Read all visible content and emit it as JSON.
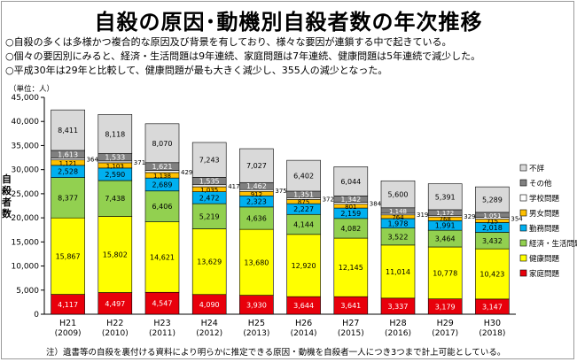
{
  "title": "自殺の原因･動機別自殺者数の年次推移",
  "bullets": [
    "○自殺の多くは多様かつ複合的な原因及び背景を有しており、様々な要因が連鎖する中で起きている。",
    "○個々の要因別にみると、経済・生活問題は9年連続、家庭問題は7年連続、健康問題は5年連続で減少した。",
    "○平成30年は29年と比較して、健康問題が最も大きく減少し、355人の減少となった。"
  ],
  "footnote": "注）遺書等の自殺を裏付ける資料により明らかに推定できる原因・動機を自殺者一人につき3つまで計上可能としている。",
  "chart_data": {
    "type": "bar",
    "stacked": true,
    "unit_label": "（単位：人）",
    "ylabel": "自殺者数",
    "ylim": [
      0,
      45000
    ],
    "yticks": [
      "0",
      "5,000",
      "10,000",
      "15,000",
      "20,000",
      "25,000",
      "30,000",
      "35,000",
      "40,000",
      "45,000"
    ],
    "grid": false,
    "legend_position": "right",
    "categories": [
      [
        "H21",
        "(2009)"
      ],
      [
        "H22",
        "(2010)"
      ],
      [
        "H23",
        "(2011)"
      ],
      [
        "H24",
        "(2012)"
      ],
      [
        "H25",
        "(2013)"
      ],
      [
        "H26",
        "(2014)"
      ],
      [
        "H27",
        "(2015)"
      ],
      [
        "H28",
        "(2016)"
      ],
      [
        "H29",
        "(2017)"
      ],
      [
        "H30",
        "(2018)"
      ]
    ],
    "series": [
      {
        "name": "家庭問題",
        "color": "#e8000b",
        "values": [
          4117,
          4497,
          4547,
          4090,
          3930,
          3644,
          3641,
          3337,
          3179,
          3147
        ]
      },
      {
        "name": "健康問題",
        "color": "#ffff00",
        "values": [
          15867,
          15802,
          14621,
          13629,
          13680,
          12920,
          12145,
          11014,
          10778,
          10423
        ]
      },
      {
        "name": "経済・生活問題",
        "color": "#92d050",
        "values": [
          8377,
          7438,
          6406,
          5219,
          4636,
          4144,
          4082,
          3522,
          3464,
          3432
        ]
      },
      {
        "name": "勤務問題",
        "color": "#00b0f0",
        "values": [
          2528,
          2590,
          2689,
          2472,
          2323,
          2227,
          2159,
          1978,
          1991,
          2018
        ]
      },
      {
        "name": "男女問題",
        "color": "#ffc000",
        "values": [
          1121,
          1103,
          1138,
          1035,
          912,
          875,
          801,
          764,
          768,
          715
        ]
      },
      {
        "name": "学校問題",
        "color": "#ffffff",
        "values": [
          364,
          371,
          429,
          417,
          375,
          372,
          384,
          319,
          329,
          354
        ]
      },
      {
        "name": "その他",
        "color": "#808080",
        "values": [
          1613,
          1533,
          1621,
          1535,
          1462,
          1351,
          1342,
          1148,
          1172,
          1051
        ]
      },
      {
        "name": "不詳",
        "color": "#d9d9d9",
        "values": [
          8411,
          8118,
          8070,
          7243,
          7027,
          6402,
          6044,
          5600,
          5391,
          5289
        ]
      }
    ],
    "legend_order": [
      "不詳",
      "その他",
      "学校問題",
      "男女問題",
      "勤務問題",
      "経済・生活問題",
      "健康問題",
      "家庭問題"
    ]
  }
}
